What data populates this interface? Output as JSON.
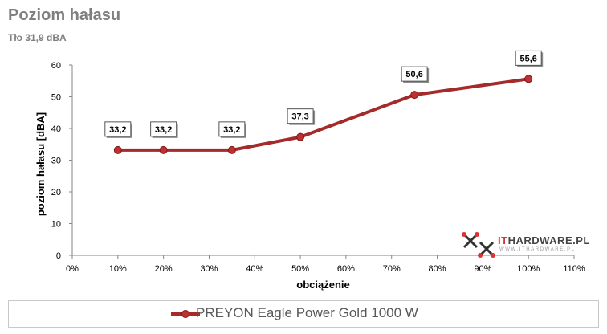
{
  "chart_data": {
    "type": "line",
    "title": "Poziom hałasu",
    "subtitle": "Tło 31,9 dBA",
    "xlabel": "obciążenie",
    "ylabel": "poziom hałasu [dBA]",
    "xlim": [
      0,
      110
    ],
    "ylim": [
      0,
      60
    ],
    "x_ticks": [
      "0%",
      "10%",
      "20%",
      "30%",
      "40%",
      "50%",
      "60%",
      "70%",
      "80%",
      "90%",
      "100%",
      "110%"
    ],
    "y_ticks": [
      "0",
      "10",
      "20",
      "30",
      "40",
      "50",
      "60"
    ],
    "grid": false,
    "legend": "bottom",
    "series": [
      {
        "name": "PREYON Eagle Power Gold 1000 W",
        "color": "#a52a2a",
        "x": [
          10,
          20,
          35,
          50,
          75,
          100
        ],
        "values": [
          33.2,
          33.2,
          33.2,
          37.3,
          50.6,
          55.6
        ],
        "labels": [
          "33,2",
          "33,2",
          "33,2",
          "37,3",
          "50,6",
          "55,6"
        ]
      }
    ]
  },
  "watermark": {
    "logo_text_it": "IT",
    "logo_text_rest": "HARDWARE.PL",
    "logo_sub": "WWW.ITHARDWARE.PL"
  }
}
